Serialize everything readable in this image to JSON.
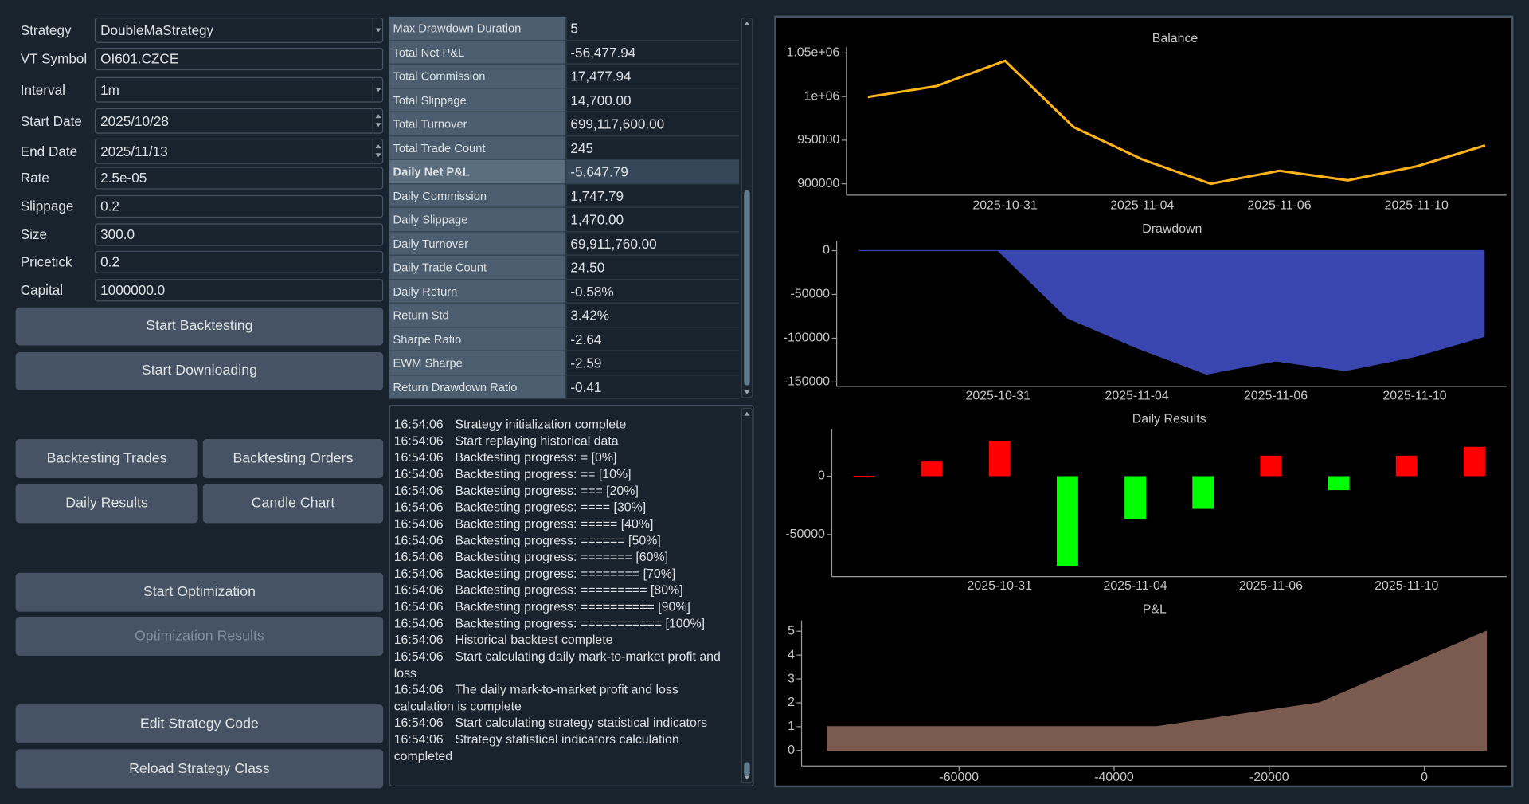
{
  "form": [
    {
      "label": "Strategy",
      "value": "DoubleMaStrategy"
    },
    {
      "label": "VT Symbol",
      "value": "OI601.CZCE"
    },
    {
      "label": "Interval",
      "value": "1m"
    },
    {
      "label": "Start Date",
      "value": "2025/10/28"
    },
    {
      "label": "End Date",
      "value": "2025/11/13"
    },
    {
      "label": "Rate",
      "value": "2.5e-05"
    },
    {
      "label": "Slippage",
      "value": "0.2"
    },
    {
      "label": "Size",
      "value": "300.0"
    },
    {
      "label": "Pricetick",
      "value": "0.2"
    },
    {
      "label": "Capital",
      "value": "1000000.0"
    }
  ],
  "buttons": [
    {
      "label": "Start Backtesting"
    },
    {
      "label": "Start Downloading"
    },
    {
      "label": "Backtesting Trades"
    },
    {
      "label": "Backtesting Orders"
    },
    {
      "label": "Daily Results"
    },
    {
      "label": "Candle Chart"
    },
    {
      "label": "Start Optimization"
    },
    {
      "label": "Optimization Results",
      "disabled": true
    },
    {
      "label": "Edit Strategy Code"
    },
    {
      "label": "Reload Strategy Class"
    }
  ],
  "statistics": {
    "selected_row": 6,
    "rows": [
      [
        "Max Drawdown Duration",
        "5"
      ],
      [
        "Total Net P&L",
        "-56,477.94"
      ],
      [
        "Total Commission",
        "17,477.94"
      ],
      [
        "Total Slippage",
        "14,700.00"
      ],
      [
        "Total Turnover",
        "699,117,600.00"
      ],
      [
        "Total Trade Count",
        "245"
      ],
      [
        "Daily Net P&L",
        "-5,647.79"
      ],
      [
        "Daily Commission",
        "1,747.79"
      ],
      [
        "Daily Slippage",
        "1,470.00"
      ],
      [
        "Daily Turnover",
        "69,911,760.00"
      ],
      [
        "Daily Trade Count",
        "24.50"
      ],
      [
        "Daily Return",
        "-0.58%"
      ],
      [
        "Return Std",
        "3.42%"
      ],
      [
        "Sharpe Ratio",
        "-2.64"
      ],
      [
        "EWM Sharpe",
        "-2.59"
      ],
      [
        "Return Drawdown Ratio",
        "-0.41"
      ]
    ]
  },
  "log": [
    [
      "16:54:06",
      "Strategy initialization complete"
    ],
    [
      "16:54:06",
      "Start replaying historical data"
    ],
    [
      "16:54:06",
      "Backtesting progress: = [0%]"
    ],
    [
      "16:54:06",
      "Backtesting progress: == [10%]"
    ],
    [
      "16:54:06",
      "Backtesting progress: === [20%]"
    ],
    [
      "16:54:06",
      "Backtesting progress: ==== [30%]"
    ],
    [
      "16:54:06",
      "Backtesting progress: ===== [40%]"
    ],
    [
      "16:54:06",
      "Backtesting progress: ====== [50%]"
    ],
    [
      "16:54:06",
      "Backtesting progress: ======= [60%]"
    ],
    [
      "16:54:06",
      "Backtesting progress: ======== [70%]"
    ],
    [
      "16:54:06",
      "Backtesting progress: ========= [80%]"
    ],
    [
      "16:54:06",
      "Backtesting progress: ========== [90%]"
    ],
    [
      "16:54:06",
      "Backtesting progress: =========== [100%]"
    ],
    [
      "16:54:06",
      "Historical backtest complete"
    ],
    [
      "16:54:06",
      "Start calculating daily mark-to-market profit and loss"
    ],
    [
      "16:54:06",
      "The daily mark-to-market profit and loss calculation is complete"
    ],
    [
      "16:54:06",
      "Start calculating strategy statistical indicators"
    ],
    [
      "16:54:06",
      "Strategy statistical indicators calculation completed"
    ]
  ],
  "chart_data": [
    {
      "type": "line",
      "title": "Balance",
      "categories": [
        null,
        null,
        "2025-10-31",
        null,
        "2025-11-04",
        null,
        "2025-11-06",
        null,
        "2025-11-10",
        null
      ],
      "values": [
        999500,
        1012000,
        1041000,
        965000,
        928000,
        900000,
        915000,
        904000,
        920000,
        944000
      ],
      "color": "#ffb31a",
      "ylim": [
        887000,
        1057000
      ],
      "yticks": [
        {
          "value": 1050000,
          "label": "1.05e+06"
        },
        {
          "value": 1000000,
          "label": "1e+06"
        },
        950000,
        900000
      ]
    },
    {
      "type": "area",
      "title": "Drawdown",
      "categories": [
        null,
        null,
        "2025-10-31",
        null,
        "2025-11-04",
        null,
        "2025-11-06",
        null,
        "2025-11-10",
        null
      ],
      "values": [
        0,
        0,
        0,
        -77000,
        -111000,
        -141000,
        -126000,
        -137000,
        -121000,
        -98000
      ],
      "color": "#3a46b0",
      "ylim": [
        -155000,
        11000
      ],
      "yticks": [
        0,
        -50000,
        -100000,
        -150000
      ]
    },
    {
      "type": "bar",
      "title": "Daily Results",
      "categories": [
        null,
        null,
        "2025-10-31",
        null,
        "2025-11-04",
        null,
        "2025-11-06",
        null,
        "2025-11-10",
        null
      ],
      "values": [
        300,
        12500,
        30000,
        -76700,
        -36500,
        -28000,
        17500,
        -12000,
        17500,
        25000
      ],
      "positive_color": "#ff0000",
      "negative_color": "#00ff00",
      "ylim": [
        -86000,
        40000
      ],
      "yticks": [
        0,
        -50000
      ]
    },
    {
      "type": "area",
      "title": "P&L",
      "x": [
        -77000,
        -34500,
        -13500,
        8000
      ],
      "values": [
        1,
        1,
        2,
        5
      ],
      "color": "#7b5a4f",
      "xlim": [
        -80300,
        10600
      ],
      "xticks": [
        -60000,
        -40000,
        -20000,
        0
      ],
      "ylim": [
        -0.65,
        5.45
      ],
      "yticks": [
        0,
        1,
        2,
        3,
        4,
        5
      ]
    }
  ]
}
